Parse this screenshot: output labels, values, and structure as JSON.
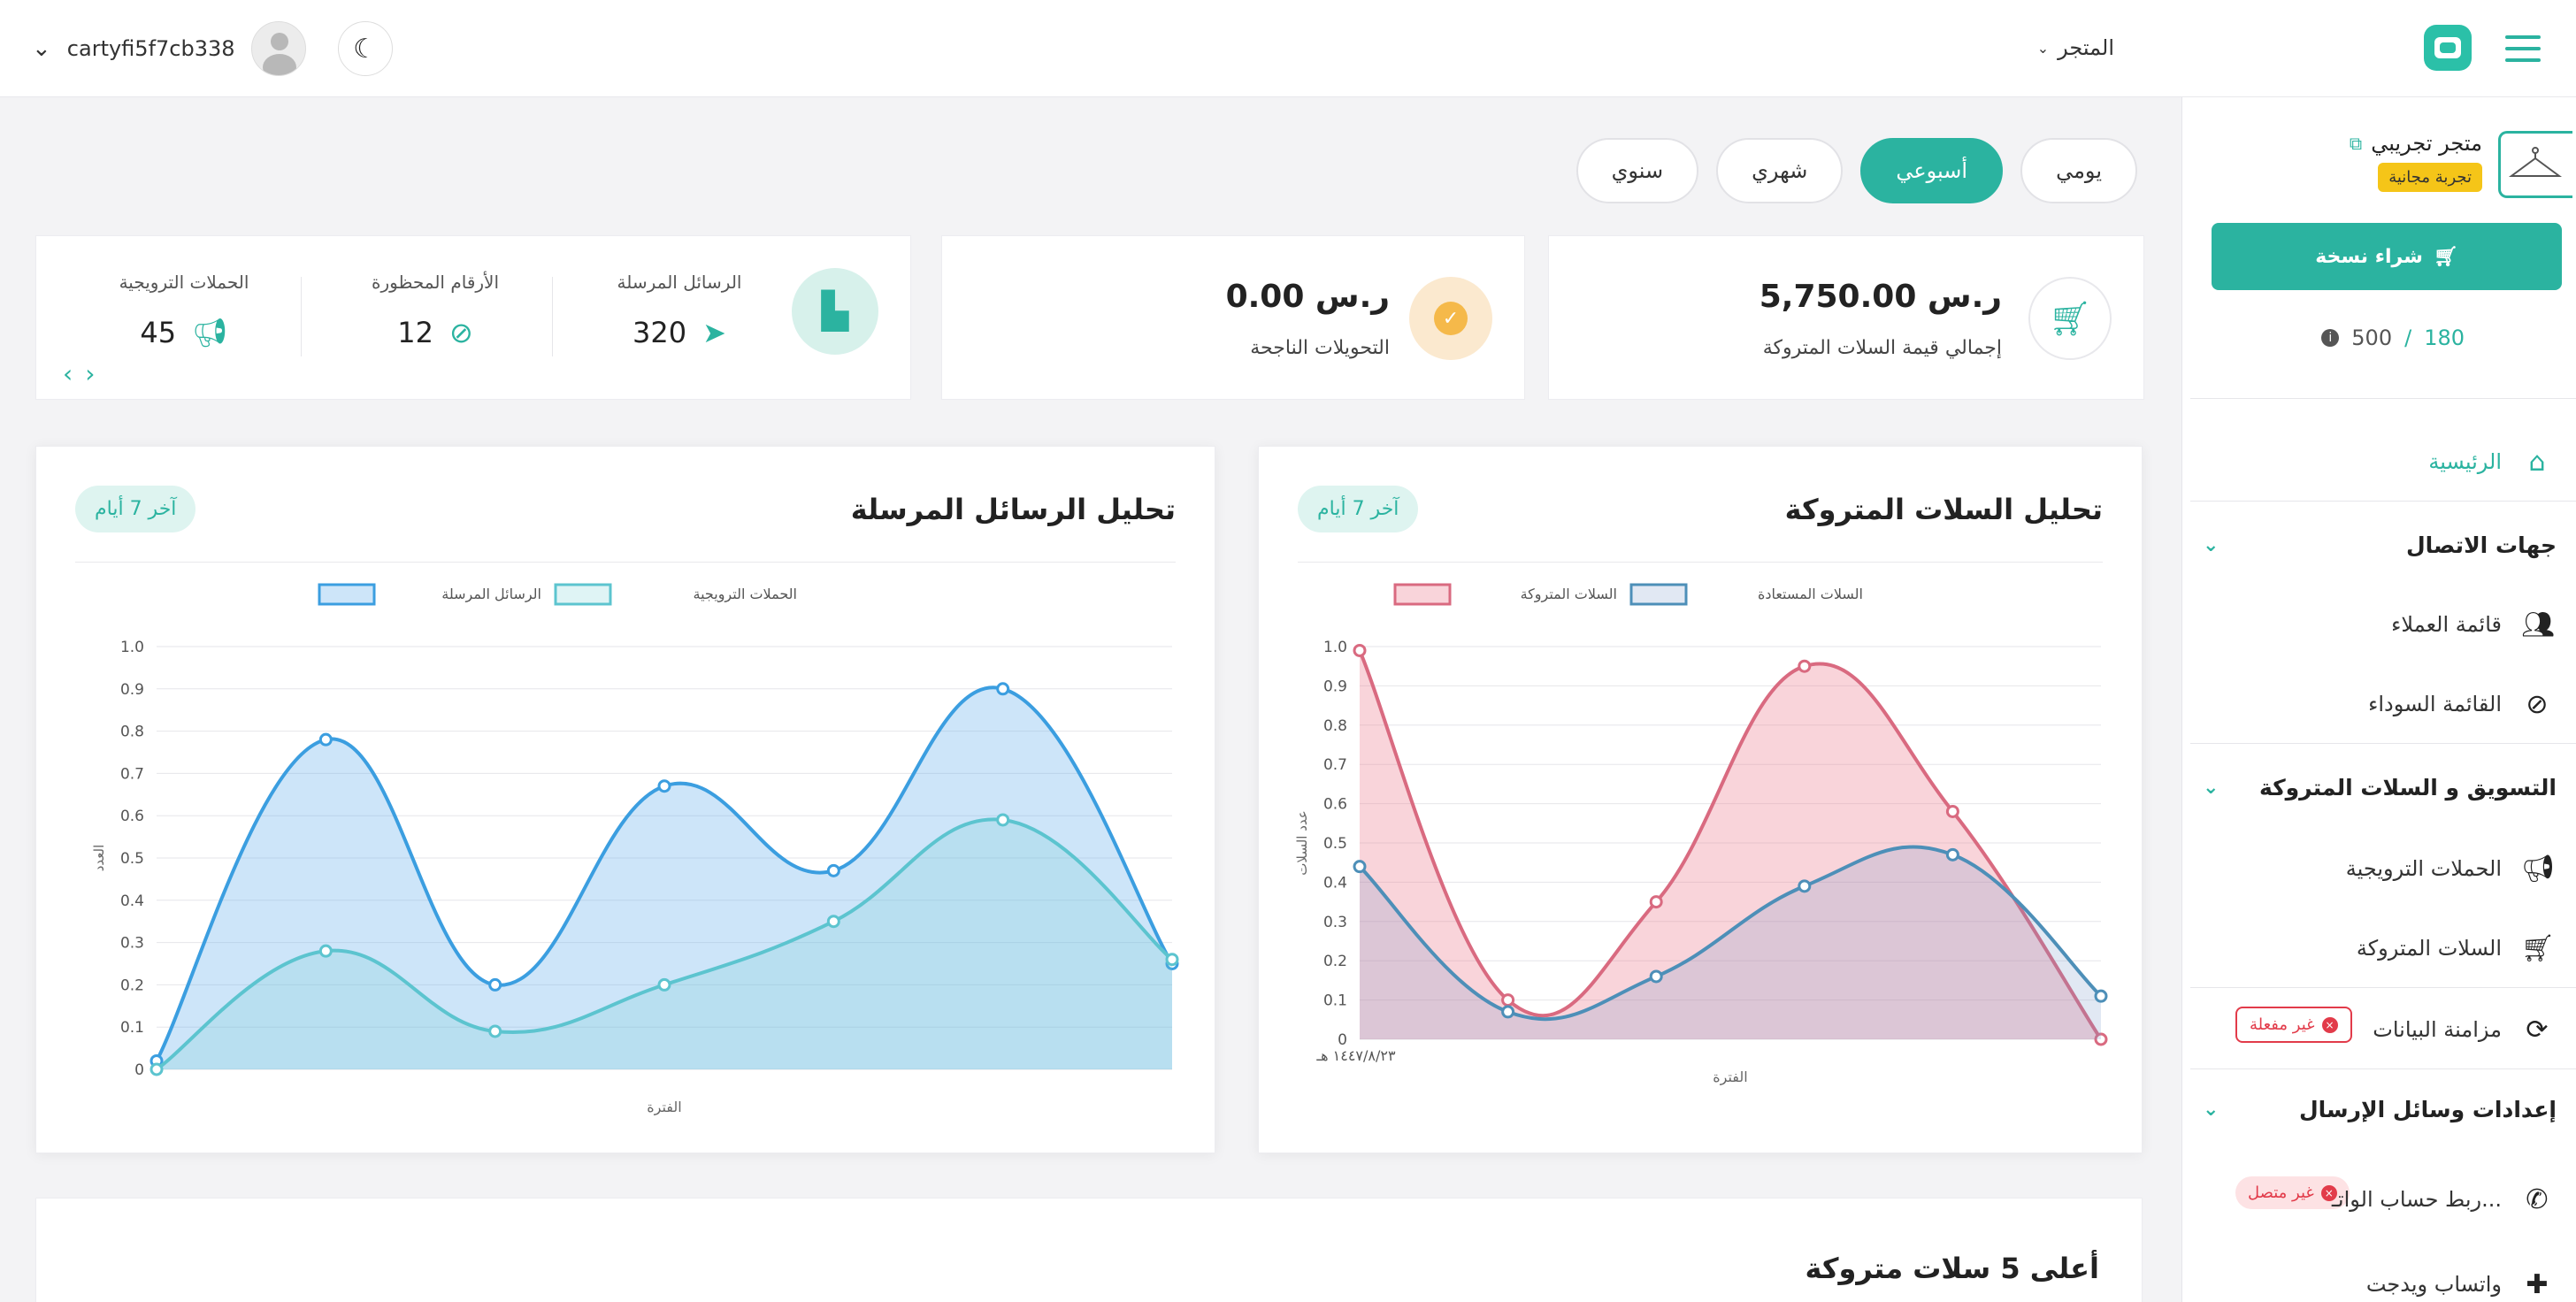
{
  "header": {
    "store_menu": "المتجر",
    "username": "cartyfi5f7cb338",
    "icons": [
      "menu-icon",
      "brand-logo-icon",
      "chevron-down-icon",
      "user-avatar-icon",
      "moon-icon"
    ]
  },
  "sidebar": {
    "store_name": "متجر تجريبي",
    "trial_badge": "تجربة مجانية",
    "buy_button": "شراء نسخة",
    "quota_used": "180",
    "quota_sep": "/",
    "quota_total": "500",
    "home": "الرئيسية",
    "group_contacts": "جهات الاتصال",
    "customers": "قائمة العملاء",
    "blacklist": "القائمة السوداء",
    "group_marketing": "التسويق و السلات المتروكة",
    "campaigns": "الحملات الترويجية",
    "abandoned_carts": "السلات المتروكة",
    "data_sync": "مزامنة البيانات",
    "data_sync_status": "غير مفعلة",
    "group_send": "إعدادات وسائل الإرسال",
    "whatsapp_link": "ربط حساب الواتـ...",
    "whatsapp_status": "غير متصل",
    "whatsapp_widget": "واتساب ويدجت"
  },
  "period_tabs": [
    "يومي",
    "أسبوعي",
    "شهري",
    "سنوي"
  ],
  "period_active": "أسبوعي",
  "stats": {
    "abandoned_value": "5,750.00 ر.س",
    "abandoned_label": "إجمالي قيمة السلات المتروكة",
    "conversions_value": "0.00 ر.س",
    "conversions_label": "التحويلات الناجحة",
    "sent_label": "الرسائل المرسلة",
    "sent_value": "320",
    "blocked_label": "الأرقام المحظورة",
    "blocked_value": "12",
    "campaigns_label": "الحملات الترويجية",
    "campaigns_value": "45"
  },
  "carts_chart": {
    "title": "تحليل السلات المتروكة",
    "tag": "آخر 7 أيام"
  },
  "messages_chart": {
    "title": "تحليل الرسائل المرسلة",
    "tag": "آخر 7 أيام"
  },
  "bottom": {
    "title": "أعلى 5 سلات متروكة"
  },
  "colors": {
    "accent": "#2bb3a0",
    "danger": "#e23b4a",
    "badge": "#f5c518"
  },
  "chart_data": [
    {
      "type": "area",
      "xlabel": "الفترة",
      "ylabel": "عدد السلات",
      "ylim": [
        0,
        1
      ],
      "yticks": [
        "0",
        "0.1",
        "0.2",
        "0.3",
        "0.4",
        "0.5",
        "0.6",
        "0.7",
        "0.8",
        "0.9",
        "1.0"
      ],
      "x_first_label": "١٤٤٧/٨/٢٣ هـ",
      "legend_position": "top",
      "series": [
        {
          "name": "السلات المتروكة",
          "color": "#d96a80",
          "fill": "rgba(235,120,140,0.32)",
          "values": [
            0.99,
            0.1,
            0.35,
            0.95,
            0.58,
            0.0
          ]
        },
        {
          "name": "السلات المستعادة",
          "color": "#4d8fb8",
          "fill": "rgba(120,150,200,0.22)",
          "values": [
            0.44,
            0.07,
            0.16,
            0.39,
            0.47,
            0.11
          ]
        }
      ]
    },
    {
      "type": "area",
      "xlabel": "الفترة",
      "ylabel": "العدد",
      "ylim": [
        0,
        1
      ],
      "yticks": [
        "0",
        "0.1",
        "0.2",
        "0.3",
        "0.4",
        "0.5",
        "0.6",
        "0.7",
        "0.8",
        "0.9",
        "1.0"
      ],
      "legend_position": "top",
      "series": [
        {
          "name": "الرسائل المرسلة",
          "color": "#3b9ee0",
          "fill": "rgba(90,170,235,0.30)",
          "values": [
            0.02,
            0.78,
            0.2,
            0.67,
            0.47,
            0.9,
            0.25
          ]
        },
        {
          "name": "الحملات الترويجية",
          "color": "#5cc4cf",
          "fill": "rgba(110,205,210,0.22)",
          "values": [
            0.0,
            0.28,
            0.09,
            0.2,
            0.35,
            0.59,
            0.26
          ]
        }
      ]
    }
  ]
}
